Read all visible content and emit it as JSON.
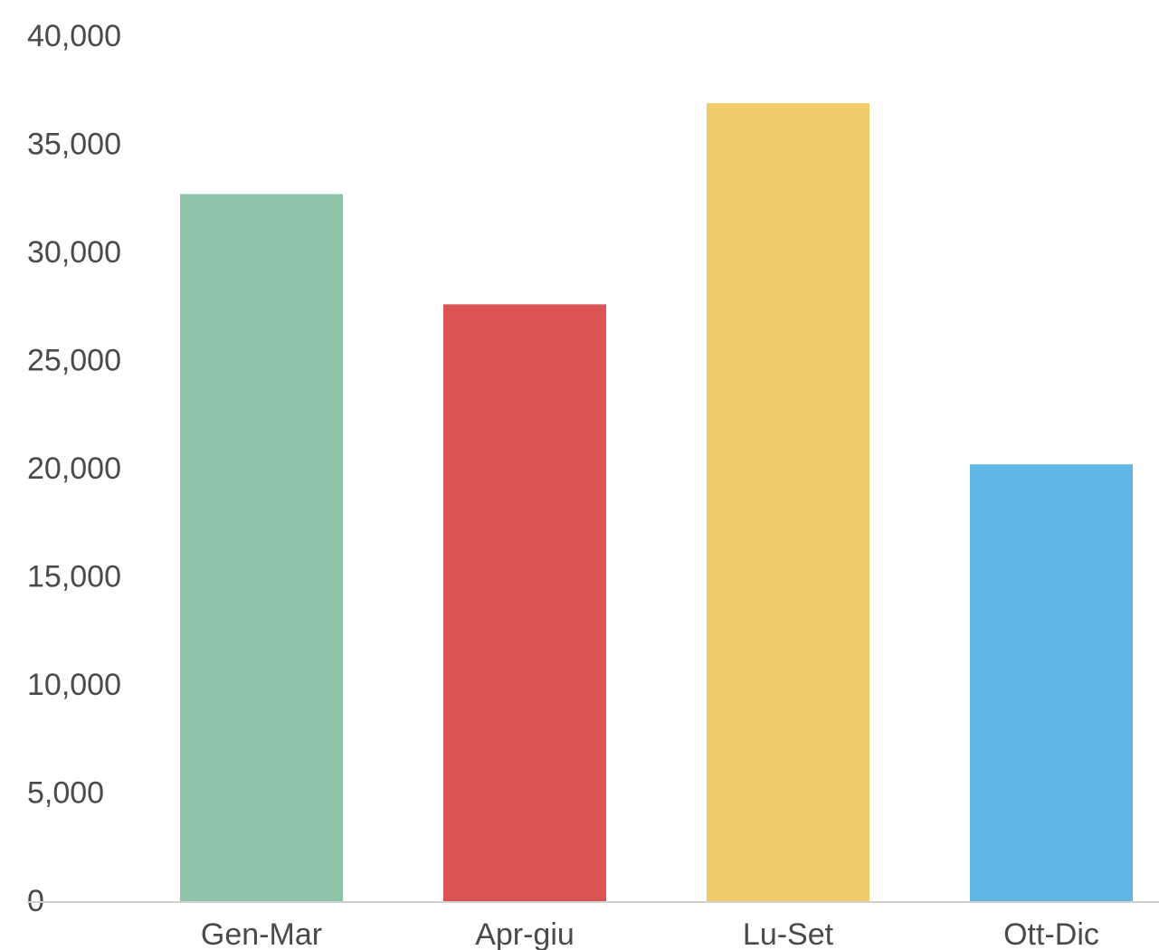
{
  "chart_data": {
    "type": "bar",
    "title": "",
    "xlabel": "",
    "ylabel": "",
    "categories": [
      "Gen-Mar",
      "Apr-giu",
      "Lu-Set",
      "Ott-Dic"
    ],
    "values": [
      32700,
      27600,
      36900,
      20200
    ],
    "colors": [
      "#8fc3a7",
      "#db5354",
      "#efcb6a",
      "#60b6e4"
    ],
    "ylim": [
      0,
      40000
    ],
    "yticks": [
      0,
      5000,
      10000,
      15000,
      20000,
      25000,
      30000,
      35000,
      40000
    ],
    "ytick_labels": [
      "0",
      "5,000",
      "10,000",
      "15,000",
      "20,000",
      "25,000",
      "30,000",
      "35,000",
      "40,000"
    ],
    "grid": false,
    "legend": "none",
    "axis_color": "#d0d0d0",
    "label_color": "#4a4a4a"
  }
}
